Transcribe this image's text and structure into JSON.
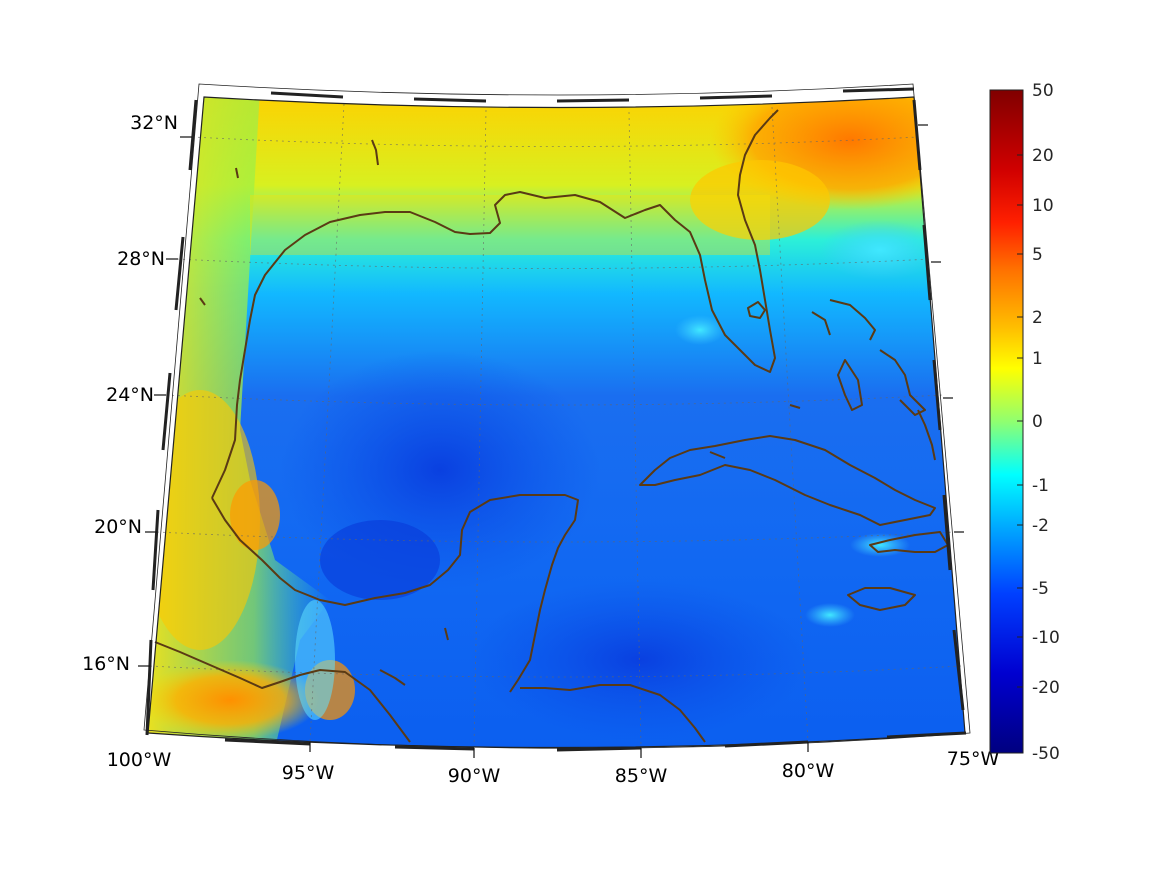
{
  "map": {
    "projection": "conic",
    "region": "Gulf of Mexico and Caribbean",
    "lon_range": [
      -100,
      -75
    ],
    "lat_range": [
      14,
      33
    ],
    "lat_ticks": [
      {
        "value": 32,
        "label": "32°N"
      },
      {
        "value": 28,
        "label": "28°N"
      },
      {
        "value": 24,
        "label": "24°N"
      },
      {
        "value": 20,
        "label": "20°N"
      },
      {
        "value": 16,
        "label": "16°N"
      }
    ],
    "lon_ticks": [
      {
        "value": -100,
        "label": "100°W"
      },
      {
        "value": -95,
        "label": "95°W"
      },
      {
        "value": -90,
        "label": "90°W"
      },
      {
        "value": -85,
        "label": "85°W"
      },
      {
        "value": -80,
        "label": "80°W"
      },
      {
        "value": -75,
        "label": "75°W"
      }
    ],
    "gridlines": true,
    "coastline_color": "#5a3a14",
    "colormap": "jet"
  },
  "colorbar": {
    "labels": [
      "50",
      "20",
      "10",
      "5",
      "2",
      "1",
      "0",
      "-1",
      "-2",
      "-5",
      "-10",
      "-20",
      "-50"
    ],
    "colors": [
      "#800000",
      "#ff0000",
      "#ff6a00",
      "#ffd200",
      "#c8ff38",
      "#00ffff",
      "#0080ff",
      "#0000ff",
      "#000080"
    ]
  }
}
